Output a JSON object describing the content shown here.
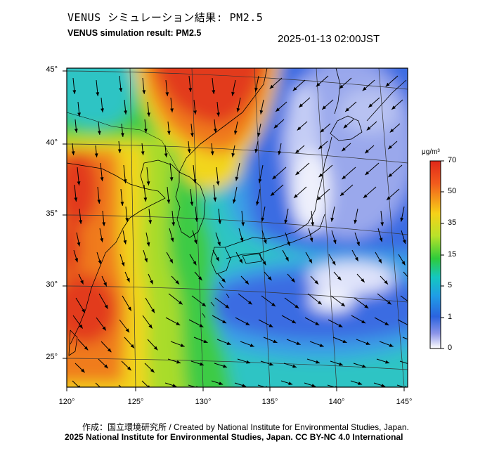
{
  "title_jp": "VENUS シミュレーション結果: PM2.5",
  "title_en": "VENUS simulation result: PM2.5",
  "timestamp": "2025-01-13 02:00JST",
  "map": {
    "variable": "PM2.5",
    "lat_labels": [
      "45°",
      "40°",
      "35°",
      "30°",
      "25°"
    ],
    "lon_labels": [
      "120°",
      "125°",
      "130°",
      "135°",
      "140°",
      "145°"
    ],
    "palette": {
      "red": "#e23a1e",
      "orange": "#f07c1e",
      "yellow": "#f2d61e",
      "yellowgreen": "#a9dc2c",
      "green": "#3ecb45",
      "cyan": "#2ec4c4",
      "lightblue": "#3aa0e6",
      "blue": "#3b6ce2",
      "lavender": "#9aa8ec",
      "white": "#f2f4fd"
    }
  },
  "colorbar": {
    "unit": "μg/m³",
    "ticks": [
      "70",
      "50",
      "35",
      "15",
      "5",
      "1",
      "0"
    ],
    "colors": [
      "#e0281a",
      "#f25b1c",
      "#f6d118",
      "#b9e22a",
      "#2fcb3a",
      "#14c7c0",
      "#1f9de6",
      "#2b63de",
      "#8c95e8",
      "#ffffff"
    ]
  },
  "footer": {
    "credit": "作成：国立環境研究所 / Created by National Institute for Environmental Studies, Japan.",
    "copyright": "2025 National Institute for Environmental Studies, Japan. CC BY-NC 4.0 International"
  }
}
